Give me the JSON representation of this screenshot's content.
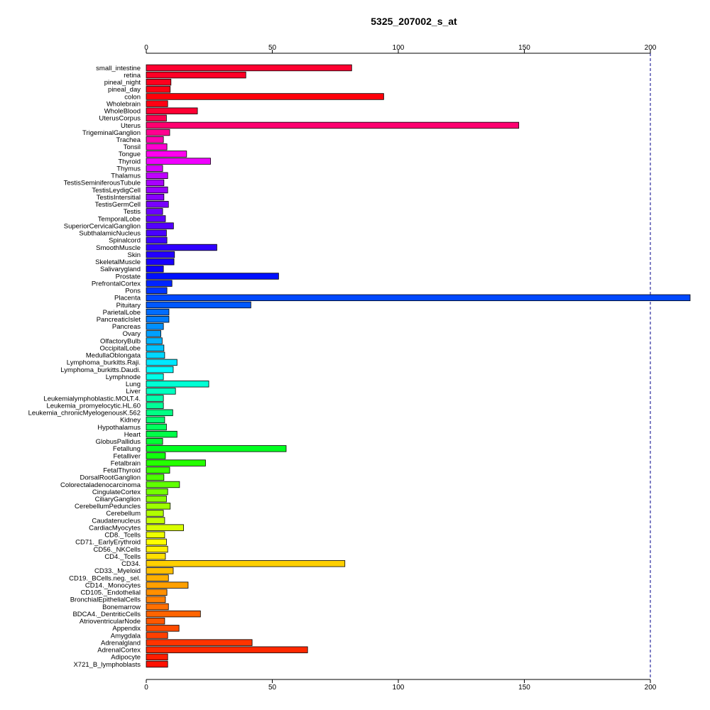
{
  "chart_data": {
    "type": "bar",
    "orientation": "horizontal",
    "title": "5325_207002_s_at",
    "xlabel": "",
    "ylabel": "",
    "xlim": [
      0,
      215
    ],
    "xticks": [
      0,
      50,
      100,
      150,
      200
    ],
    "xtick_labels": [
      "0",
      "50",
      "100",
      "150",
      "200"
    ],
    "reference_line": 200,
    "axes_top_and_bottom": true,
    "grid": false,
    "categories": [
      "small_intestine",
      "retina",
      "pineal_night",
      "pineal_day",
      "colon",
      "Wholebrain",
      "WholeBlood",
      "UterusCorpus",
      "Uterus",
      "TrigeminalGanglion",
      "Trachea",
      "Tonsil",
      "Tongue",
      "Thyroid",
      "Thymus",
      "Thalamus",
      "TestisSeminiferousTubule",
      "TestisLeydigCell",
      "TestisIntersitial",
      "TestisGermCell",
      "Testis",
      "TemporalLobe",
      "SuperiorCervicalGanglion",
      "SubthalamicNucleus",
      "Spinalcord",
      "SmoothMuscle",
      "Skin",
      "SkeletalMuscle",
      "Salivarygland",
      "Prostate",
      "PrefrontalCortex",
      "Pons",
      "Placenta",
      "Pituitary",
      "ParietalLobe",
      "PancreaticIslet",
      "Pancreas",
      "Ovary",
      "OlfactoryBulb",
      "OccipitalLobe",
      "MedullaOblongata",
      "Lymphoma_burkitts.Raji.",
      "Lymphoma_burkitts.Daudi.",
      "Lymphnode",
      "Lung",
      "Liver",
      "Leukemialymphoblastic.MOLT.4.",
      "Leukemia_promyelocytic.HL.60",
      "Leukemia_chronicMyelogenousK.562",
      "Kidney",
      "Hypothalamus",
      "Heart",
      "GlobusPallidus",
      "Fetallung",
      "Fetalliver",
      "Fetalbrain",
      "FetalThyroid",
      "DorsalRootGanglion",
      "Colorectaladenocarcinoma",
      "CingulateCortex",
      "CiliaryGanglion",
      "CerebellumPeduncles",
      "Cerebellum",
      "Caudatenucleus",
      "CardiacMyocytes",
      "CD8._Tcells",
      "CD71._EarlyErythroid",
      "CD56._NKCells",
      "CD4._Tcells",
      "CD34.",
      "CD33._Myeloid",
      "CD19._BCells.neg._sel.",
      "CD14._Monocytes",
      "CD105._Endothelial",
      "BronchialEpithelialCells",
      "Bonemarrow",
      "BDCA4._DentriticCells",
      "AtrioventricularNode",
      "Appendix",
      "Amygdala",
      "Adrenalgland",
      "AdrenalCortex",
      "Adipocyte",
      "X721_B_lymphoblasts"
    ],
    "values": [
      81.5,
      39.5,
      9.8,
      9.5,
      94.2,
      8.5,
      20.3,
      8.0,
      147.8,
      9.3,
      6.8,
      8.2,
      16.0,
      25.5,
      6.5,
      8.5,
      7.0,
      8.5,
      7.0,
      8.8,
      6.5,
      7.6,
      10.8,
      8.0,
      8.2,
      28.0,
      11.2,
      11.0,
      6.8,
      52.5,
      10.2,
      8.2,
      216.0,
      41.5,
      9.0,
      9.0,
      6.8,
      5.8,
      6.3,
      7.0,
      7.3,
      12.2,
      10.7,
      6.8,
      24.8,
      11.6,
      6.8,
      6.8,
      10.5,
      7.3,
      8.0,
      12.2,
      6.5,
      55.5,
      7.6,
      23.5,
      9.3,
      7.0,
      13.2,
      8.5,
      8.0,
      9.5,
      6.8,
      7.3,
      14.8,
      7.3,
      8.0,
      8.5,
      7.6,
      78.8,
      10.7,
      8.8,
      16.6,
      8.2,
      7.6,
      8.8,
      21.5,
      7.3,
      13.0,
      8.5,
      42.0,
      64.0,
      8.5,
      8.5
    ],
    "colors": [
      "#ff0030",
      "#ff0026",
      "#ff001d",
      "#ff0014",
      "#ff000a",
      "#ff0013",
      "#ff0033",
      "#ff0050",
      "#ff0070",
      "#ff0090",
      "#ff00b0",
      "#ff00d0",
      "#ff00f0",
      "#f000ff",
      "#d800ff",
      "#c000ff",
      "#a800ff",
      "#9800ff",
      "#8800ff",
      "#7800ff",
      "#6c00ff",
      "#6000ff",
      "#5400ff",
      "#4800ff",
      "#3c00ff",
      "#3000ff",
      "#2400ff",
      "#1800ff",
      "#0c00ff",
      "#0010ff",
      "#0024ff",
      "#0034ff",
      "#0048ff",
      "#0058ff",
      "#006cff",
      "#007cff",
      "#0090ff",
      "#00a0ff",
      "#00b4ff",
      "#00c4ff",
      "#00d8ff",
      "#00e8ff",
      "#00fcff",
      "#00ffe8",
      "#00ffd4",
      "#00ffc0",
      "#00ffac",
      "#00ff98",
      "#00ff84",
      "#00ff70",
      "#00ff5c",
      "#00ff48",
      "#00ff34",
      "#00ff20",
      "#10ff0c",
      "#24ff00",
      "#38ff00",
      "#4cff00",
      "#60ff00",
      "#74ff00",
      "#88ff00",
      "#9cff00",
      "#b0ff00",
      "#c4ff00",
      "#d8ff00",
      "#ecff00",
      "#ffff00",
      "#fff000",
      "#ffe000",
      "#ffd000",
      "#ffc000",
      "#ffb000",
      "#ffa000",
      "#ff9000",
      "#ff8000",
      "#ff7000",
      "#ff6400",
      "#ff5800",
      "#ff4c00",
      "#ff4000",
      "#ff3400",
      "#ff2800",
      "#ff1c00",
      "#ff1000"
    ]
  }
}
